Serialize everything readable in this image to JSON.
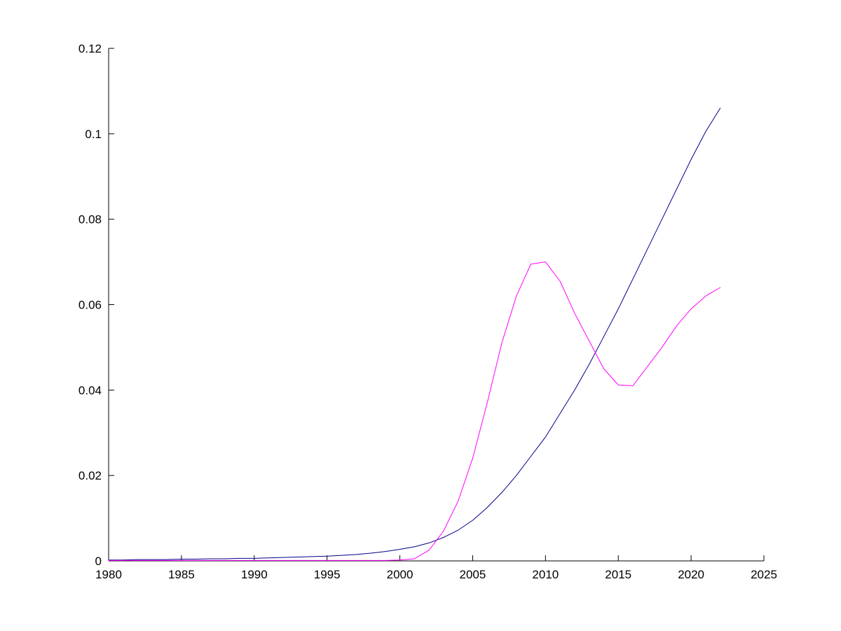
{
  "chart_data": {
    "type": "line",
    "title": "",
    "xlabel": "",
    "ylabel": "",
    "grid": false,
    "legend_position": "none",
    "xlim": [
      1980,
      2025
    ],
    "ylim": [
      0,
      0.12
    ],
    "xticks": [
      1980,
      1985,
      1990,
      1995,
      2000,
      2005,
      2010,
      2015,
      2020,
      2025
    ],
    "xtick_labels": [
      "1980",
      "1985",
      "1990",
      "1995",
      "2000",
      "2005",
      "2010",
      "2015",
      "2020",
      "2025"
    ],
    "yticks": [
      0,
      0.02,
      0.04,
      0.06,
      0.08,
      0.1,
      0.12
    ],
    "ytick_labels": [
      "0",
      "0.02",
      "0.04",
      "0.06",
      "0.08",
      "0.1",
      "0.12"
    ],
    "axis_color": "#000000",
    "background_color": "#ffffff",
    "x": [
      1980,
      1981,
      1982,
      1983,
      1984,
      1985,
      1986,
      1987,
      1988,
      1989,
      1990,
      1991,
      1992,
      1993,
      1994,
      1995,
      1996,
      1997,
      1998,
      1999,
      2000,
      2001,
      2002,
      2003,
      2004,
      2005,
      2006,
      2007,
      2008,
      2009,
      2010,
      2011,
      2012,
      2013,
      2014,
      2015,
      2016,
      2017,
      2018,
      2019,
      2020,
      2021,
      2022
    ],
    "series": [
      {
        "name": "dark-blue-series",
        "color": "#00008b",
        "values": [
          0.0002,
          0.0002,
          0.0003,
          0.0003,
          0.0003,
          0.0004,
          0.0004,
          0.0005,
          0.0005,
          0.0006,
          0.0006,
          0.0007,
          0.0008,
          0.0009,
          0.001,
          0.0011,
          0.0013,
          0.0015,
          0.0018,
          0.0022,
          0.0027,
          0.0033,
          0.0042,
          0.0055,
          0.0072,
          0.0095,
          0.0125,
          0.016,
          0.02,
          0.0245,
          0.029,
          0.0345,
          0.04,
          0.046,
          0.0525,
          0.059,
          0.066,
          0.073,
          0.08,
          0.087,
          0.094,
          0.1005,
          0.106
        ]
      },
      {
        "name": "magenta-series",
        "color": "#ff00ff",
        "values": [
          0.0001,
          0.0001,
          0.0001,
          0.0001,
          0.0001,
          0.0001,
          0.0001,
          0.0001,
          0.0001,
          0.0001,
          0.0001,
          0.0001,
          0.0001,
          0.0001,
          0.0001,
          0.0001,
          0.0001,
          0.0001,
          0.0001,
          0.0001,
          0.0002,
          0.0005,
          0.0025,
          0.007,
          0.014,
          0.024,
          0.037,
          0.051,
          0.062,
          0.0695,
          0.07,
          0.0655,
          0.058,
          0.0515,
          0.045,
          0.0412,
          0.041,
          0.0455,
          0.05,
          0.055,
          0.059,
          0.062,
          0.064
        ]
      }
    ]
  }
}
